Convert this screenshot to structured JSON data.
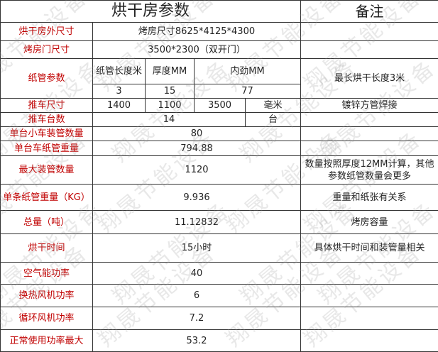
{
  "header": {
    "title": "烘干房参数",
    "remark": "备注"
  },
  "rows": {
    "outer_size": {
      "label": "烘干房外尺寸",
      "value": "烤房尺寸8625*4125*4300",
      "remark": ""
    },
    "door_size": {
      "label": "烤房门尺寸",
      "value": "3500*2300（双开门）",
      "remark": ""
    },
    "tube_params": {
      "label": "纸管参数",
      "headers": [
        "纸管长度米",
        "厚度MM",
        "内劲MM"
      ],
      "values": [
        "3",
        "15",
        "77"
      ],
      "remark": "最长烘干长度3米"
    },
    "cart_size": {
      "label": "推车尺寸",
      "values": [
        "1400",
        "1100",
        "3500"
      ],
      "unit": "毫米",
      "remark": "镀锌方管焊接"
    },
    "cart_count": {
      "label": "推车台数",
      "value": "14",
      "unit": "台",
      "remark": ""
    },
    "tubes_per_cart": {
      "label": "单台小车装管数量",
      "value": "80",
      "remark": ""
    },
    "weight_per_cart": {
      "label": "单台车纸管重量",
      "value": "794.88",
      "remark": ""
    },
    "max_tubes": {
      "label": "最大装管数量",
      "value": "1120",
      "remark": "数量按照厚度12MM计算，其他参数纸管数量会更多"
    },
    "single_weight": {
      "label": "单条纸管重量（KG）",
      "value": "9.936",
      "remark": "重量和纸张有关系"
    },
    "total": {
      "label": "总量（吨）",
      "value": "11.12832",
      "remark": "烤房容量"
    },
    "dry_time": {
      "label": "烘干时间",
      "value": "15小时",
      "remark": "具体烘干时间和装管量相关"
    },
    "air_power": {
      "label": "空气能功率",
      "value": "40",
      "remark": ""
    },
    "hx_fan": {
      "label": "换热风机功率",
      "value": "6",
      "remark": ""
    },
    "circ_fan": {
      "label": "循环风机功率",
      "value": "7.2",
      "remark": ""
    },
    "max_power": {
      "label": "正常使用功率最大",
      "value": "53.2",
      "remark": ""
    }
  },
  "watermark": "翔晟节能设备",
  "colors": {
    "label": "#c00000",
    "border": "#333333"
  }
}
